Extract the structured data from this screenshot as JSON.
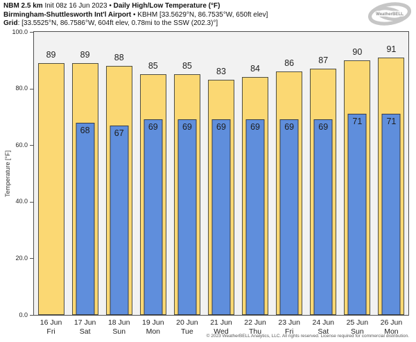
{
  "header": {
    "line1": {
      "model": "NBM 2.5 km",
      "init": " Init 08z 16 Jun 2023 • ",
      "title": "Daily High/Low Temperature (°F)"
    },
    "line2": {
      "station": "Birmingham-Shuttlesworth Int'l Airport",
      "details": " • KBHM [33.5629°N, 86.7535°W, 650ft elev]"
    },
    "line3": {
      "label": "Grid",
      "details": ": [33.5525°N, 86.7586°W, 604ft elev, 0.78mi to the SSW (202.3)°]"
    }
  },
  "logo": {
    "text": "WeatherBELL"
  },
  "chart_data": {
    "type": "bar",
    "title": "Daily High/Low Temperature (°F)",
    "ylabel": "Temperature [°F]",
    "ylim": [
      0,
      100
    ],
    "yticks": [
      0,
      20,
      40,
      60,
      80,
      100
    ],
    "ytick_labels": [
      "0.0",
      "20.0",
      "40.0",
      "60.0",
      "80.0",
      "100.0"
    ],
    "grid": false,
    "legend": "none",
    "plot_bg": "#f2f2f2",
    "categories": [
      {
        "date": "16 Jun",
        "day": "Fri"
      },
      {
        "date": "17 Jun",
        "day": "Sat"
      },
      {
        "date": "18 Jun",
        "day": "Sun"
      },
      {
        "date": "19 Jun",
        "day": "Mon"
      },
      {
        "date": "20 Jun",
        "day": "Tue"
      },
      {
        "date": "21 Jun",
        "day": "Wed"
      },
      {
        "date": "22 Jun",
        "day": "Thu"
      },
      {
        "date": "23 Jun",
        "day": "Fri"
      },
      {
        "date": "24 Jun",
        "day": "Sat"
      },
      {
        "date": "25 Jun",
        "day": "Sun"
      },
      {
        "date": "26 Jun",
        "day": "Mon"
      }
    ],
    "series": [
      {
        "name": "High",
        "color": "#fbd873",
        "values": [
          89,
          89,
          88,
          85,
          85,
          83,
          84,
          86,
          87,
          90,
          91
        ]
      },
      {
        "name": "Low",
        "color": "#5f8edc",
        "values": [
          null,
          68,
          67,
          69,
          69,
          69,
          69,
          69,
          69,
          71,
          71
        ]
      }
    ]
  },
  "footer": {
    "copyright": "© 2023 WeatherBELL Analytics, LLC. All rights reserved. License required for commercial distribution."
  }
}
